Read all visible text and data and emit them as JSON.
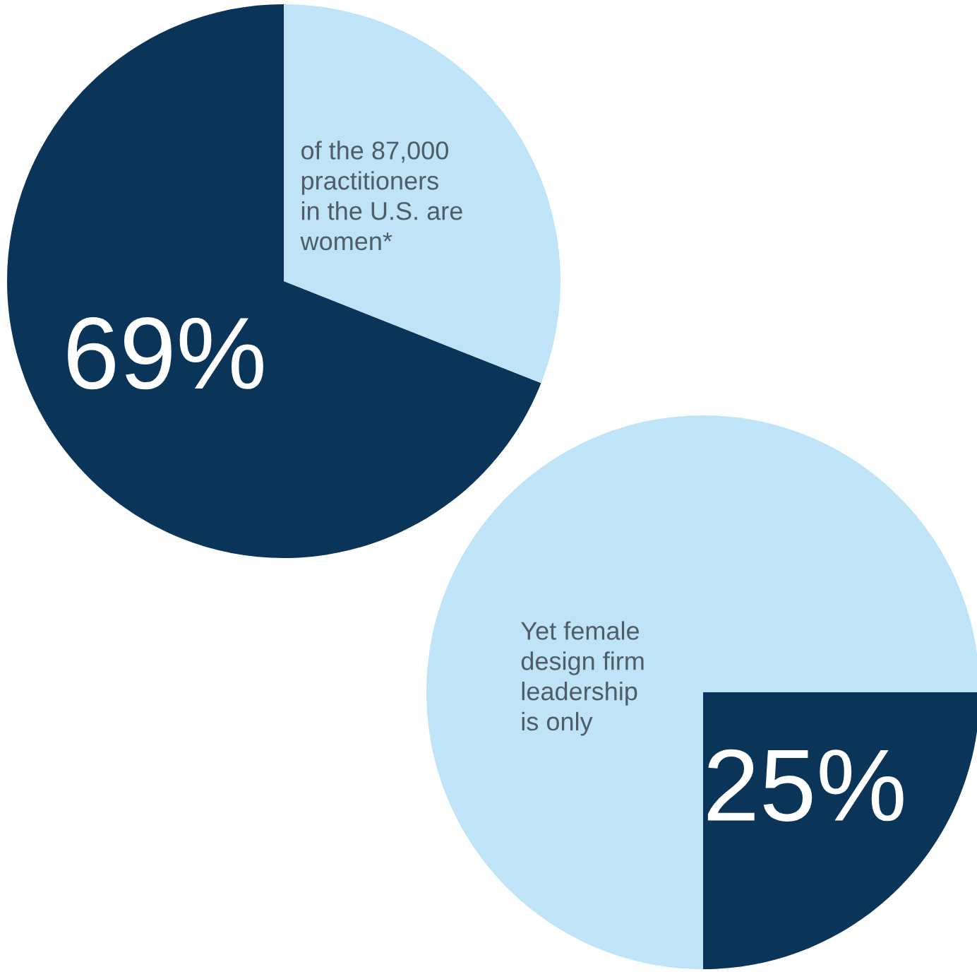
{
  "chart_data": [
    {
      "type": "pie",
      "categories": [
        null,
        null
      ],
      "values": [
        69,
        31
      ],
      "colors": [
        "#0b3558",
        "#bfe4f8"
      ],
      "value_labels": [
        "69%",
        null
      ],
      "annotations": [
        "of the 87,000\npractitioners\nin the U.S. are\nwomen*"
      ]
    },
    {
      "type": "pie",
      "categories": [
        null,
        null
      ],
      "values": [
        75,
        25
      ],
      "colors": [
        "#bfe4f8",
        "#0b3558"
      ],
      "value_labels": [
        null,
        "25%"
      ],
      "annotations": [
        "Yet female\ndesign firm\nleadership\nis only"
      ]
    }
  ]
}
